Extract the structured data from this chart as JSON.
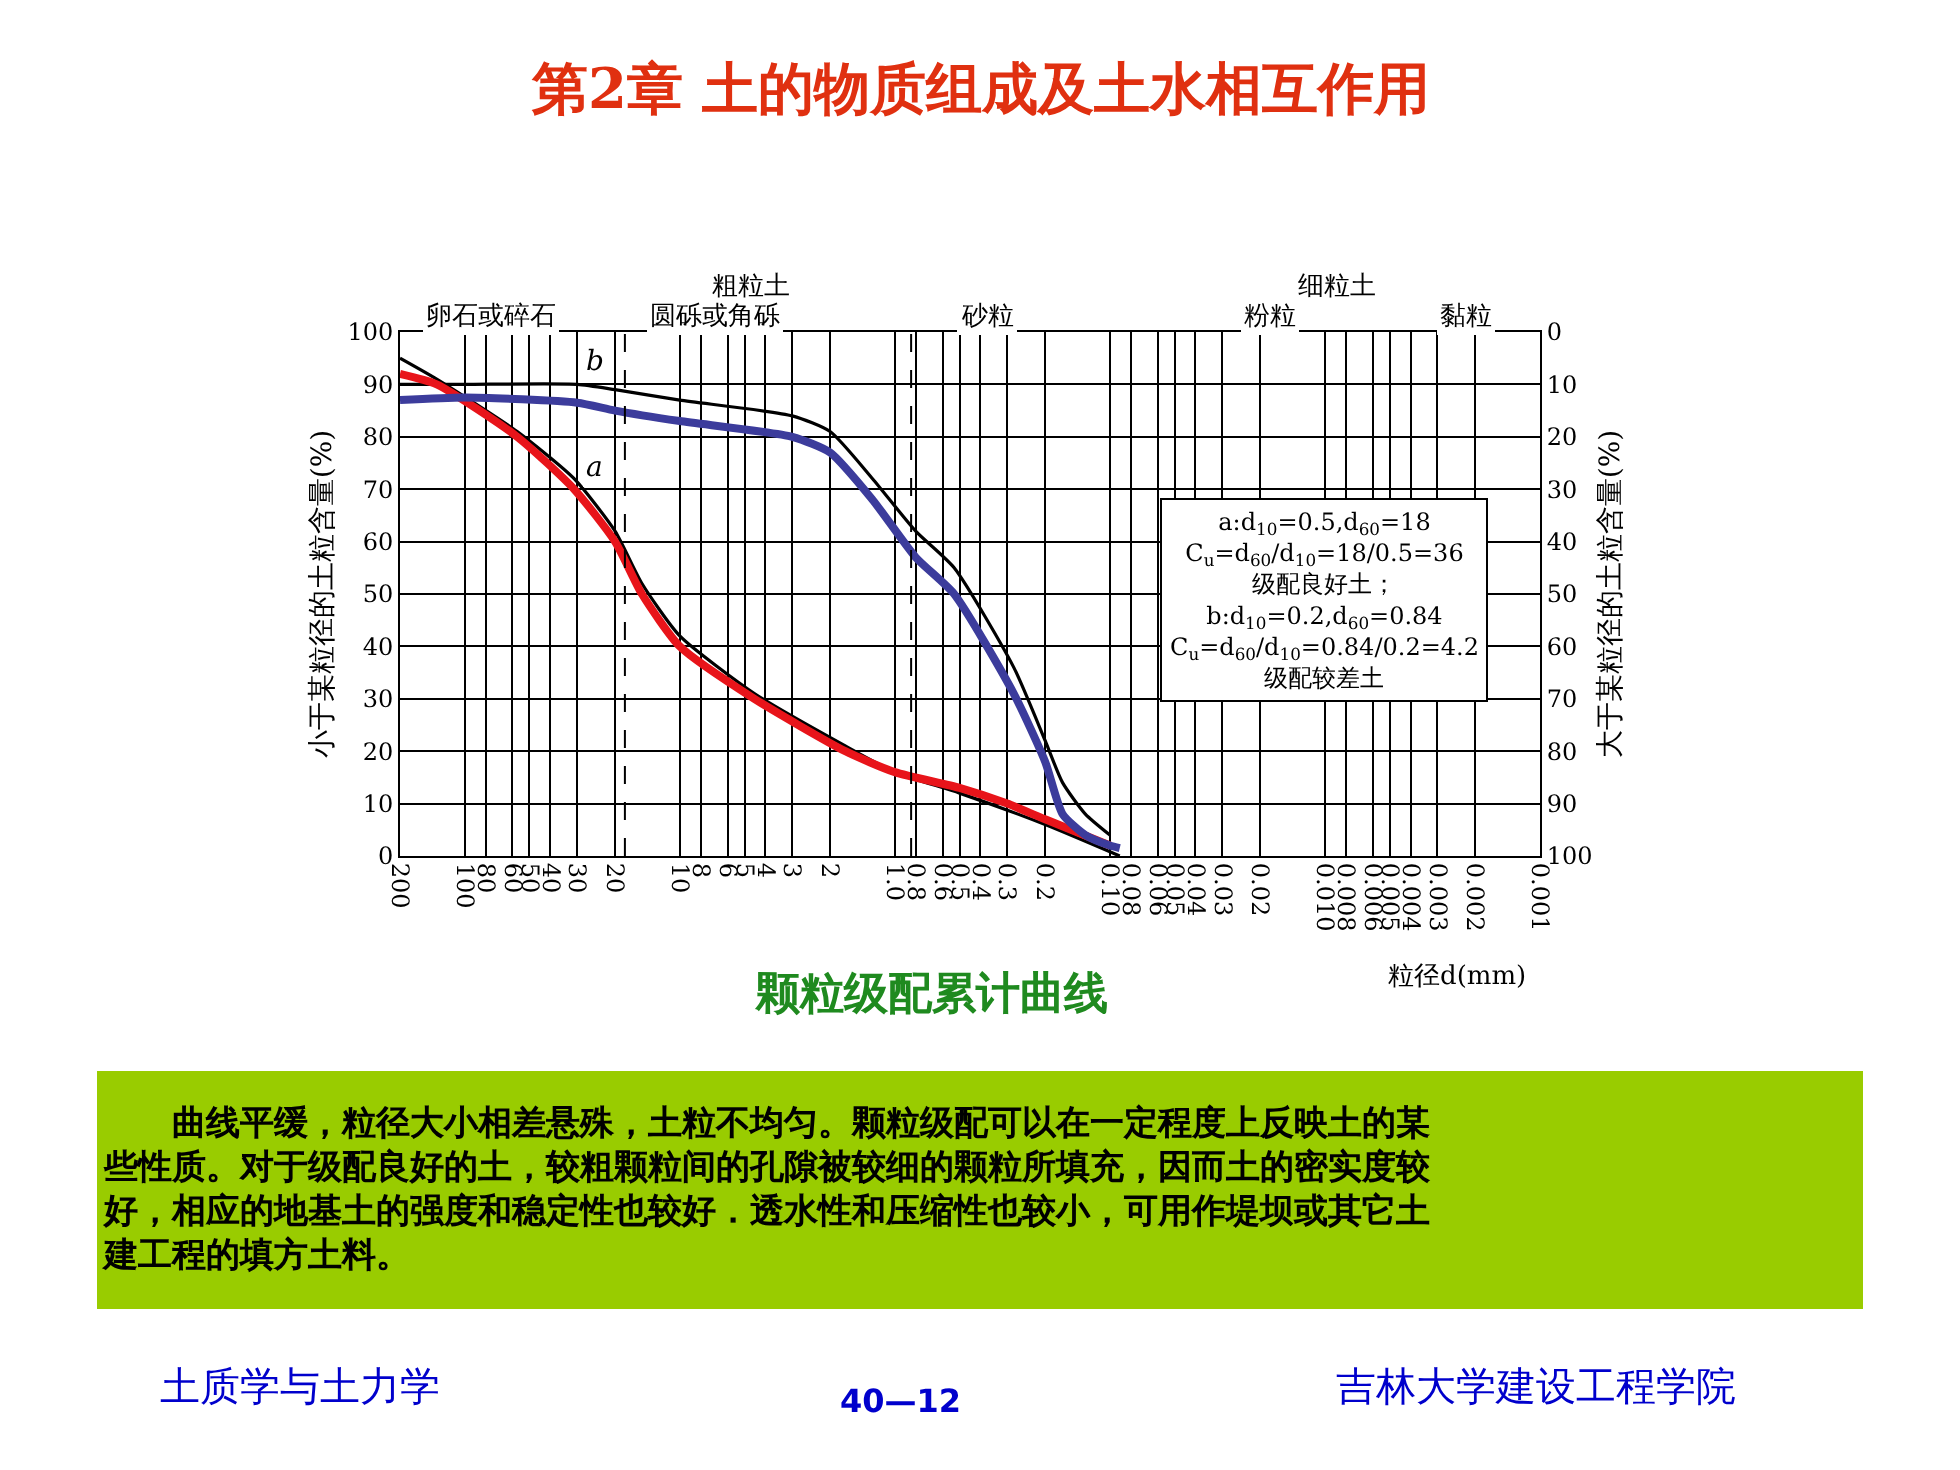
{
  "chart_data": {
    "type": "line",
    "title": "第2章 土的物质组成及土水相互作用",
    "subtitle": "颗粒级配累计曲线",
    "xlabel": "粒径d(mm)",
    "ylabel": "小于某粒径的土粒含量(%)",
    "y2label": "大于某粒径的土粒含量(%)",
    "log": "x",
    "xlim": [
      200,
      0.001
    ],
    "xticks": [
      200,
      100,
      80,
      60,
      50,
      40,
      30,
      20,
      10,
      8,
      6,
      5,
      4,
      3,
      2,
      {
        "value": 1,
        "label": "1.0"
      },
      0.8,
      0.6,
      0.5,
      0.4,
      0.3,
      0.2,
      {
        "value": 0.1,
        "label": "0.10"
      },
      0.08,
      0.06,
      0.05,
      0.04,
      0.03,
      0.02,
      {
        "value": 0.01,
        "label": "0.010"
      },
      0.008,
      0.006,
      0.005,
      0.004,
      0.003,
      0.002,
      0.001
    ],
    "ylim": [
      0,
      100
    ],
    "yticks": [
      0,
      10,
      20,
      30,
      40,
      50,
      60,
      70,
      80,
      90,
      100
    ],
    "y2lim": [
      100,
      0
    ],
    "y2ticks": [
      0,
      10,
      20,
      30,
      40,
      50,
      60,
      70,
      80,
      90,
      100
    ],
    "grid": true,
    "marker": "none",
    "line_style": "solid",
    "series": [
      {
        "color": "#000000",
        "x": [
          200,
          135,
          57,
          31,
          20,
          15,
          10,
          4.5,
          1.7,
          1.0,
          0.5,
          0.2,
          0.09
        ],
        "values": [
          95,
          91,
          81,
          72,
          62,
          52,
          42,
          31,
          21,
          16,
          12,
          6,
          0
        ]
      },
      {
        "color": "#000000",
        "x": [
          200,
          100,
          30,
          20,
          10,
          3,
          2,
          1.27,
          0.8,
          0.53,
          0.28,
          0.2,
          0.166,
          0.13,
          0.1
        ],
        "values": [
          90,
          90,
          90,
          89,
          87,
          84,
          81,
          72,
          62,
          55,
          36,
          22,
          14,
          8,
          4
        ]
      },
      {
        "color": "#e8141a",
        "x": [
          200,
          135,
          57,
          31,
          20,
          15,
          10,
          4.5,
          1.7,
          1.0,
          0.5,
          0.3,
          0.2,
          0.1
        ],
        "values": [
          92,
          90,
          80,
          70,
          60,
          50,
          40,
          30,
          20,
          16,
          13,
          10,
          7,
          2
        ]
      },
      {
        "color": "#3c3c9c",
        "x": [
          200,
          100,
          30,
          20,
          10,
          3,
          2,
          1.27,
          0.8,
          0.53,
          0.28,
          0.2,
          0.166,
          0.13,
          0.1,
          0.09
        ],
        "values": [
          87,
          87.5,
          86.5,
          85,
          83,
          80,
          77,
          68,
          57,
          50,
          31,
          18,
          8,
          4,
          2,
          1.5
        ]
      }
    ],
    "ref_lines": [
      {
        "axis": "x",
        "value": 18,
        "line_style": "dashed",
        "color": "#000000"
      },
      {
        "axis": "x",
        "value": 0.84,
        "line_style": "dashed",
        "color": "#000000"
      }
    ],
    "annotations": [
      "粗粒土",
      "细粒土",
      "卵石或碎石",
      "圆砾或角砾",
      "砂粒",
      "粉粒",
      "黏粒",
      "a:d$_{10}$=0.5,d$_{60}$=18",
      "C$_{u}$=d$_{60}$/d$_{10}$=18/0.5=36",
      "级配良好土；",
      "b:d$_{10}$=0.2,d$_{60}$=0.84",
      "C$_{u}$=d$_{60}$/d$_{10}$=0.84/0.2=4.2",
      "级配较差土",
      "a",
      "b",
      "曲线平缓，粒径大小相差悬殊，土粒不均匀。颗粒级配可以在一定程度上反映土的某些性质。对于级配良好的土，较粗颗粒间的孔隙被较细的颗粒所填充，因而土的密实度较好，相应的地基土的强度和稳定性也较好．透水性和压缩性也较小，可用作堤坝或其它土建工程的填方土料。",
      "土质学与土力学",
      "40—12",
      "吉林大学建设工程学院"
    ]
  }
}
